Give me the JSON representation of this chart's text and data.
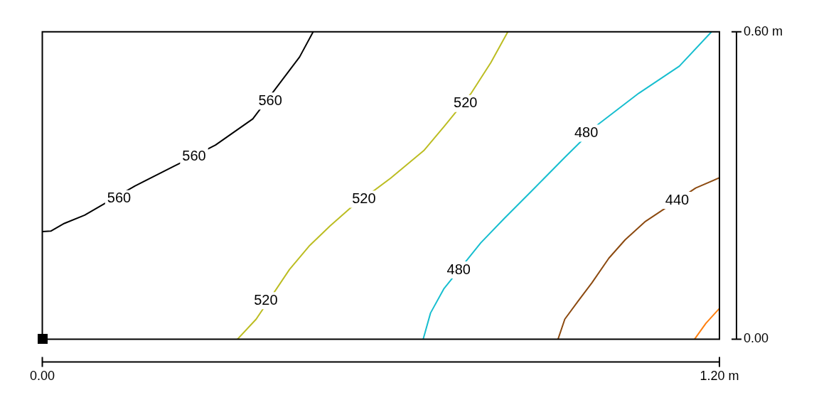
{
  "chart_data": {
    "type": "line",
    "xlim": [
      0,
      1.2
    ],
    "ylim": [
      0,
      0.6
    ],
    "xticks": [
      {
        "value": 0,
        "label": "0.00"
      },
      {
        "value": 1.2,
        "label": "1.20 m"
      }
    ],
    "yticks": [
      {
        "value": 0,
        "label": "0.00"
      },
      {
        "value": 0.6,
        "label": "0.60 m"
      }
    ],
    "legend": false,
    "marker": "none",
    "line_style": "solid",
    "series": [
      {
        "color": "#000000",
        "x": [
          0,
          0.015,
          0.039,
          0.075,
          0.164,
          0.236,
          0.307,
          0.373,
          0.456,
          0.48
        ],
        "values": [
          0.21,
          0.211,
          0.226,
          0.242,
          0.299,
          0.339,
          0.379,
          0.43,
          0.551,
          0.6
        ]
      },
      {
        "color": "#bcbd22",
        "x": [
          0.346,
          0.379,
          0.438,
          0.474,
          0.51,
          0.545,
          0.617,
          0.676,
          0.712,
          0.76,
          0.795,
          0.825
        ],
        "values": [
          0,
          0.039,
          0.136,
          0.183,
          0.221,
          0.255,
          0.314,
          0.368,
          0.415,
          0.48,
          0.54,
          0.6
        ]
      },
      {
        "color": "#17becf",
        "x": [
          0.675,
          0.688,
          0.712,
          0.777,
          0.819,
          0.867,
          0.926,
          0.986,
          1.057,
          1.129,
          1.186
        ],
        "values": [
          0,
          0.051,
          0.099,
          0.188,
          0.236,
          0.289,
          0.355,
          0.42,
          0.48,
          0.533,
          0.6
        ]
      },
      {
        "color": "#8c4a10",
        "x": [
          0.914,
          0.926,
          0.95,
          0.974,
          1.004,
          1.033,
          1.069,
          1.158,
          1.2
        ],
        "values": [
          0,
          0.039,
          0.075,
          0.11,
          0.158,
          0.194,
          0.23,
          0.295,
          0.315
        ]
      },
      {
        "color": "#ff7f0e",
        "x": [
          1.156,
          1.176,
          1.2
        ],
        "values": [
          0,
          0.031,
          0.06
        ]
      }
    ],
    "annotations": [
      {
        "text": "560",
        "x": 0.136,
        "y": 0.274
      },
      {
        "text": "560",
        "x": 0.269,
        "y": 0.357
      },
      {
        "text": "560",
        "x": 0.404,
        "y": 0.465
      },
      {
        "text": "520",
        "x": 0.396,
        "y": 0.075
      },
      {
        "text": "520",
        "x": 0.57,
        "y": 0.273
      },
      {
        "text": "520",
        "x": 0.75,
        "y": 0.46
      },
      {
        "text": "480",
        "x": 0.738,
        "y": 0.135
      },
      {
        "text": "480",
        "x": 0.964,
        "y": 0.402
      },
      {
        "text": "440",
        "x": 1.125,
        "y": 0.271
      }
    ]
  }
}
